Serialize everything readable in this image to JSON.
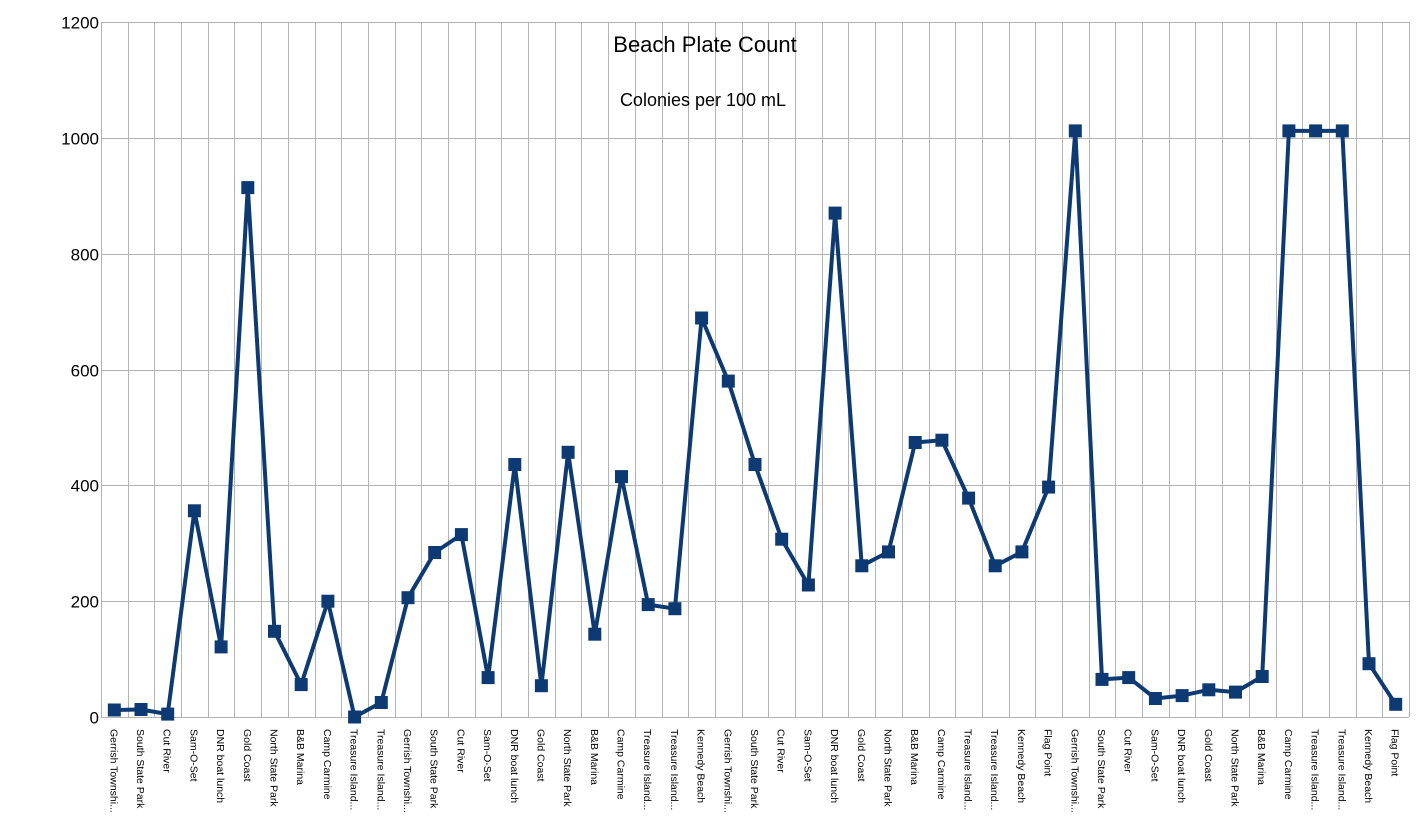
{
  "chart_data": {
    "type": "line",
    "title": "Beach Plate Count",
    "subtitle": "Colonies per 100 mL",
    "xlabel": "",
    "ylabel": "",
    "ylim": [
      0,
      1200
    ],
    "yticks": [
      0,
      200,
      400,
      600,
      800,
      1000,
      1200
    ],
    "grid": true,
    "legend": "none",
    "line_color": "#0e3a73",
    "marker": "square",
    "categories": [
      "Gerrish Townshi...",
      "South State Park",
      "Cut River",
      "Sam-O-Set",
      "DNR boat lunch",
      "Gold Coast",
      "North State Park",
      "B&B Marina",
      "Camp Carmine",
      "Treasure Island...",
      "Treasure Island...",
      "Gerrish Townshi...",
      "South State Park",
      "Cut River",
      "Sam-O-Set",
      "DNR boat lunch",
      "Gold Coast",
      "North State Park",
      "B&B Marina",
      "Camp Carmine",
      "Treasure Island...",
      "Treasure Island...",
      "Kennedy Beach",
      "Gerrish Townshi...",
      "South State Park",
      "Cut River",
      "Sam-O-Set",
      "DNR boat lunch",
      "Gold Coast",
      "North State Park",
      "B&B Marina",
      "Camp Carmine",
      "Treasure Island...",
      "Treasure Island...",
      "Kennedy Beach",
      "Flag Point",
      "Gerrish Townshi...",
      "South State Park",
      "Cut River",
      "Sam-O-Set",
      "DNR boat lunch",
      "Gold Coast",
      "North State Park",
      "B&B Marina",
      "Camp Carmine",
      "Treasure Island...",
      "Treasure Island...",
      "Kennedy Beach",
      "Flag Point"
    ],
    "series": [
      {
        "values": [
          12,
          13,
          5,
          356,
          121,
          914,
          148,
          56,
          200,
          0,
          25,
          206,
          284,
          315,
          68,
          436,
          54,
          457,
          143,
          415,
          194,
          187,
          689,
          580,
          436,
          307,
          228,
          870,
          261,
          285,
          474,
          478,
          378,
          261,
          285,
          397,
          1012,
          65,
          68,
          32,
          37,
          47,
          43,
          70,
          1012,
          1012,
          1012,
          92,
          22
        ]
      }
    ]
  }
}
